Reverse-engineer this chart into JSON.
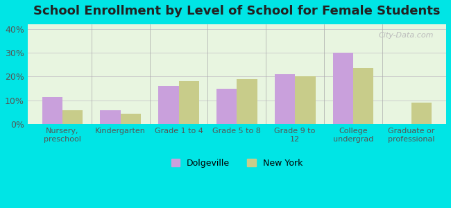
{
  "title": "School Enrollment by Level of School for Female Students",
  "categories": [
    "Nursery,\npreschool",
    "Kindergarten",
    "Grade 1 to 4",
    "Grade 5 to 8",
    "Grade 9 to\n12",
    "College\nundergrad",
    "Graduate or\nprofessional"
  ],
  "dolgeville_values": [
    11.5,
    6.0,
    16.0,
    15.0,
    21.0,
    30.0,
    0.0
  ],
  "newyork_values": [
    6.0,
    4.5,
    18.0,
    19.0,
    20.0,
    23.5,
    9.0
  ],
  "dolgeville_color": "#c9a0dc",
  "newyork_color": "#c8cc8a",
  "background_outer": "#00e5e5",
  "background_inner_top": "#e8f5e0",
  "background_inner_bottom": "#f5ffe8",
  "ylim": [
    0,
    42
  ],
  "yticks": [
    0,
    10,
    20,
    30,
    40
  ],
  "ytick_labels": [
    "0%",
    "10%",
    "20%",
    "30%",
    "40%"
  ],
  "legend_labels": [
    "Dolgeville",
    "New York"
  ],
  "bar_width": 0.35
}
